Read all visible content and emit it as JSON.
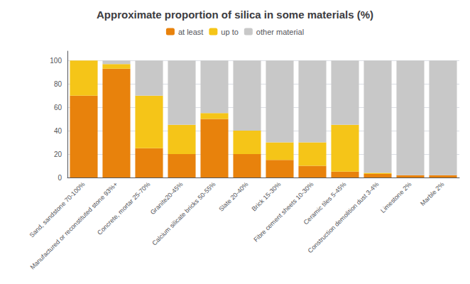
{
  "chart_data": {
    "type": "bar",
    "title": "Approximate proportion of silica in some materials (%)",
    "categories": [
      "Sand, sandstone 70-100%",
      "Manufactured or reconstituted stone 93%+",
      "Concrete, mortar 25-70%",
      "Granite20-45%",
      "Calcium silicate bricks 50-55%",
      "Slate 20-40%",
      "Brick 15-30%",
      "Fibre cement sheets 10-30%",
      "Ceramic tiles 5-45%",
      "Construction demolition dust 3-4%",
      "Limestone 2%",
      "Marble 2%"
    ],
    "series": [
      {
        "name": "at least",
        "color": "#E8820C",
        "values": [
          70,
          93,
          25,
          20,
          50,
          20,
          15,
          10,
          5,
          3,
          2,
          2
        ]
      },
      {
        "name": "up to",
        "color": "#F5C518",
        "values": [
          30,
          4,
          45,
          25,
          5,
          20,
          15,
          20,
          40,
          1,
          0,
          0
        ]
      },
      {
        "name": "other material",
        "color": "#C8C8C8",
        "values": [
          0,
          3,
          30,
          55,
          45,
          60,
          70,
          70,
          55,
          96,
          98,
          98
        ]
      }
    ],
    "stacked": true,
    "ylim": [
      0,
      108
    ],
    "yticks": [
      0,
      20,
      40,
      60,
      80,
      100
    ],
    "grid": true,
    "legend": "top"
  }
}
